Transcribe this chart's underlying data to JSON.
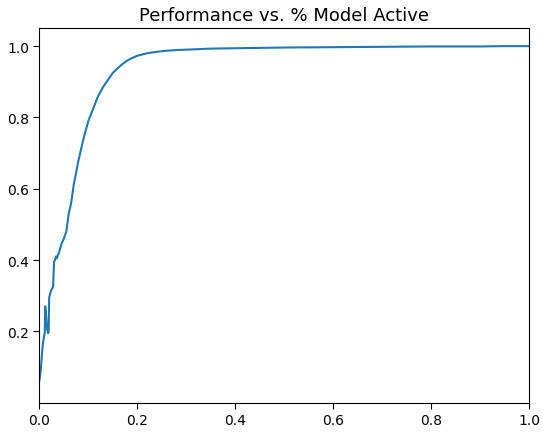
{
  "title": "Performance vs. % Model Active",
  "line_color": "#1f77b4",
  "line_width": 1.5,
  "xlim": [
    0.0,
    1.0
  ],
  "ylim": [
    0.0,
    1.05
  ],
  "x_ticks": [
    0.0,
    0.2,
    0.4,
    0.6,
    0.8,
    1.0
  ],
  "y_ticks": [
    0.2,
    0.4,
    0.6,
    0.8,
    1.0
  ],
  "background_color": "#ffffff",
  "x_data": [
    0.0,
    0.001,
    0.002,
    0.003,
    0.004,
    0.005,
    0.006,
    0.007,
    0.008,
    0.009,
    0.01,
    0.011,
    0.012,
    0.013,
    0.014,
    0.015,
    0.016,
    0.017,
    0.018,
    0.019,
    0.02,
    0.022,
    0.024,
    0.026,
    0.028,
    0.03,
    0.032,
    0.034,
    0.036,
    0.038,
    0.04,
    0.045,
    0.05,
    0.055,
    0.06,
    0.065,
    0.07,
    0.075,
    0.08,
    0.09,
    0.1,
    0.11,
    0.12,
    0.13,
    0.14,
    0.15,
    0.16,
    0.17,
    0.18,
    0.19,
    0.2,
    0.22,
    0.24,
    0.26,
    0.28,
    0.3,
    0.35,
    0.4,
    0.5,
    0.6,
    0.7,
    0.8,
    0.9,
    0.95,
    1.0
  ],
  "y_data": [
    0.062,
    0.072,
    0.082,
    0.095,
    0.11,
    0.13,
    0.148,
    0.162,
    0.172,
    0.18,
    0.19,
    0.195,
    0.27,
    0.255,
    0.24,
    0.22,
    0.205,
    0.2,
    0.195,
    0.2,
    0.295,
    0.305,
    0.315,
    0.32,
    0.325,
    0.395,
    0.4,
    0.41,
    0.405,
    0.415,
    0.42,
    0.445,
    0.46,
    0.48,
    0.53,
    0.56,
    0.61,
    0.645,
    0.68,
    0.74,
    0.79,
    0.825,
    0.86,
    0.885,
    0.905,
    0.925,
    0.938,
    0.95,
    0.96,
    0.967,
    0.973,
    0.98,
    0.984,
    0.987,
    0.989,
    0.99,
    0.993,
    0.994,
    0.996,
    0.997,
    0.998,
    0.999,
    0.999,
    1.0,
    1.0
  ]
}
